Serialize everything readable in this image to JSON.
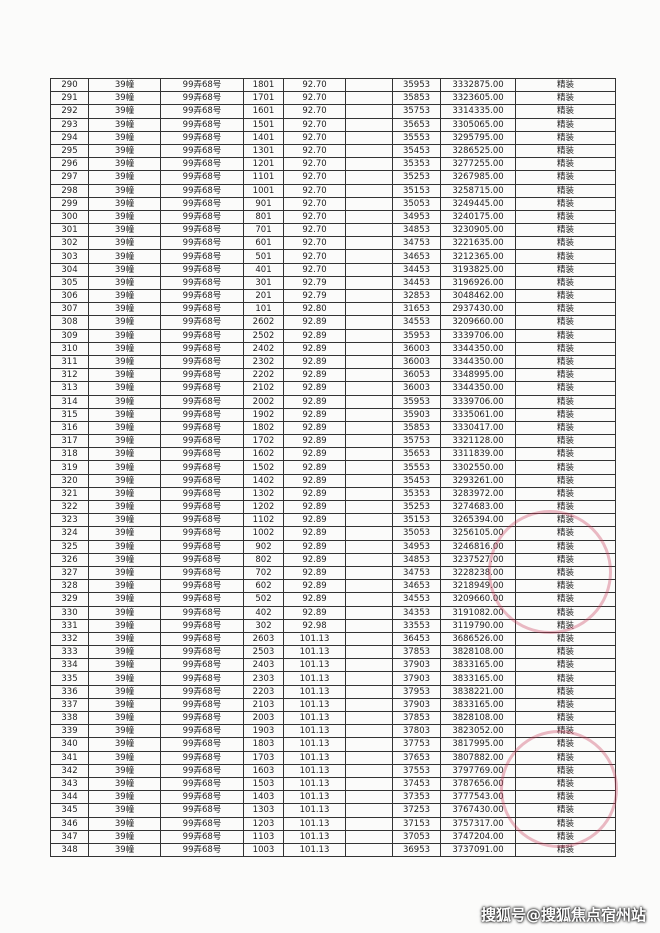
{
  "table": {
    "rows": [
      [
        "290",
        "39幢",
        "99弄68号",
        "1801",
        "92.70",
        "35953",
        "3332875.00",
        "精装"
      ],
      [
        "291",
        "39幢",
        "99弄68号",
        "1701",
        "92.70",
        "35853",
        "3323605.00",
        "精装"
      ],
      [
        "292",
        "39幢",
        "99弄68号",
        "1601",
        "92.70",
        "35753",
        "3314335.00",
        "精装"
      ],
      [
        "293",
        "39幢",
        "99弄68号",
        "1501",
        "92.70",
        "35653",
        "3305065.00",
        "精装"
      ],
      [
        "294",
        "39幢",
        "99弄68号",
        "1401",
        "92.70",
        "35553",
        "3295795.00",
        "精装"
      ],
      [
        "295",
        "39幢",
        "99弄68号",
        "1301",
        "92.70",
        "35453",
        "3286525.00",
        "精装"
      ],
      [
        "296",
        "39幢",
        "99弄68号",
        "1201",
        "92.70",
        "35353",
        "3277255.00",
        "精装"
      ],
      [
        "297",
        "39幢",
        "99弄68号",
        "1101",
        "92.70",
        "35253",
        "3267985.00",
        "精装"
      ],
      [
        "298",
        "39幢",
        "99弄68号",
        "1001",
        "92.70",
        "35153",
        "3258715.00",
        "精装"
      ],
      [
        "299",
        "39幢",
        "99弄68号",
        "901",
        "92.70",
        "35053",
        "3249445.00",
        "精装"
      ],
      [
        "300",
        "39幢",
        "99弄68号",
        "801",
        "92.70",
        "34953",
        "3240175.00",
        "精装"
      ],
      [
        "301",
        "39幢",
        "99弄68号",
        "701",
        "92.70",
        "34853",
        "3230905.00",
        "精装"
      ],
      [
        "302",
        "39幢",
        "99弄68号",
        "601",
        "92.70",
        "34753",
        "3221635.00",
        "精装"
      ],
      [
        "303",
        "39幢",
        "99弄68号",
        "501",
        "92.70",
        "34653",
        "3212365.00",
        "精装"
      ],
      [
        "304",
        "39幢",
        "99弄68号",
        "401",
        "92.70",
        "34453",
        "3193825.00",
        "精装"
      ],
      [
        "305",
        "39幢",
        "99弄68号",
        "301",
        "92.79",
        "34453",
        "3196926.00",
        "精装"
      ],
      [
        "306",
        "39幢",
        "99弄68号",
        "201",
        "92.79",
        "32853",
        "3048462.00",
        "精装"
      ],
      [
        "307",
        "39幢",
        "99弄68号",
        "101",
        "92.80",
        "31653",
        "2937430.00",
        "精装"
      ],
      [
        "308",
        "39幢",
        "99弄68号",
        "2602",
        "92.89",
        "34553",
        "3209660.00",
        "精装"
      ],
      [
        "309",
        "39幢",
        "99弄68号",
        "2502",
        "92.89",
        "35953",
        "3339706.00",
        "精装"
      ],
      [
        "310",
        "39幢",
        "99弄68号",
        "2402",
        "92.89",
        "36003",
        "3344350.00",
        "精装"
      ],
      [
        "311",
        "39幢",
        "99弄68号",
        "2302",
        "92.89",
        "36003",
        "3344350.00",
        "精装"
      ],
      [
        "312",
        "39幢",
        "99弄68号",
        "2202",
        "92.89",
        "36053",
        "3348995.00",
        "精装"
      ],
      [
        "313",
        "39幢",
        "99弄68号",
        "2102",
        "92.89",
        "36003",
        "3344350.00",
        "精装"
      ],
      [
        "314",
        "39幢",
        "99弄68号",
        "2002",
        "92.89",
        "35953",
        "3339706.00",
        "精装"
      ],
      [
        "315",
        "39幢",
        "99弄68号",
        "1902",
        "92.89",
        "35903",
        "3335061.00",
        "精装"
      ],
      [
        "316",
        "39幢",
        "99弄68号",
        "1802",
        "92.89",
        "35853",
        "3330417.00",
        "精装"
      ],
      [
        "317",
        "39幢",
        "99弄68号",
        "1702",
        "92.89",
        "35753",
        "3321128.00",
        "精装"
      ],
      [
        "318",
        "39幢",
        "99弄68号",
        "1602",
        "92.89",
        "35653",
        "3311839.00",
        "精装"
      ],
      [
        "319",
        "39幢",
        "99弄68号",
        "1502",
        "92.89",
        "35553",
        "3302550.00",
        "精装"
      ],
      [
        "320",
        "39幢",
        "99弄68号",
        "1402",
        "92.89",
        "35453",
        "3293261.00",
        "精装"
      ],
      [
        "321",
        "39幢",
        "99弄68号",
        "1302",
        "92.89",
        "35353",
        "3283972.00",
        "精装"
      ],
      [
        "322",
        "39幢",
        "99弄68号",
        "1202",
        "92.89",
        "35253",
        "3274683.00",
        "精装"
      ],
      [
        "323",
        "39幢",
        "99弄68号",
        "1102",
        "92.89",
        "35153",
        "3265394.00",
        "精装"
      ],
      [
        "324",
        "39幢",
        "99弄68号",
        "1002",
        "92.89",
        "35053",
        "3256105.00",
        "精装"
      ],
      [
        "325",
        "39幢",
        "99弄68号",
        "902",
        "92.89",
        "34953",
        "3246816.00",
        "精装"
      ],
      [
        "326",
        "39幢",
        "99弄68号",
        "802",
        "92.89",
        "34853",
        "3237527.00",
        "精装"
      ],
      [
        "327",
        "39幢",
        "99弄68号",
        "702",
        "92.89",
        "34753",
        "3228238.00",
        "精装"
      ],
      [
        "328",
        "39幢",
        "99弄68号",
        "602",
        "92.89",
        "34653",
        "3218949.00",
        "精装"
      ],
      [
        "329",
        "39幢",
        "99弄68号",
        "502",
        "92.89",
        "34553",
        "3209660.00",
        "精装"
      ],
      [
        "330",
        "39幢",
        "99弄68号",
        "402",
        "92.89",
        "34353",
        "3191082.00",
        "精装"
      ],
      [
        "331",
        "39幢",
        "99弄68号",
        "302",
        "92.98",
        "33553",
        "3119790.00",
        "精装"
      ],
      [
        "332",
        "39幢",
        "99弄68号",
        "2603",
        "101.13",
        "36453",
        "3686526.00",
        "精装"
      ],
      [
        "333",
        "39幢",
        "99弄68号",
        "2503",
        "101.13",
        "37853",
        "3828108.00",
        "精装"
      ],
      [
        "334",
        "39幢",
        "99弄68号",
        "2403",
        "101.13",
        "37903",
        "3833165.00",
        "精装"
      ],
      [
        "335",
        "39幢",
        "99弄68号",
        "2303",
        "101.13",
        "37903",
        "3833165.00",
        "精装"
      ],
      [
        "336",
        "39幢",
        "99弄68号",
        "2203",
        "101.13",
        "37953",
        "3838221.00",
        "精装"
      ],
      [
        "337",
        "39幢",
        "99弄68号",
        "2103",
        "101.13",
        "37903",
        "3833165.00",
        "精装"
      ],
      [
        "338",
        "39幢",
        "99弄68号",
        "2003",
        "101.13",
        "37853",
        "3828108.00",
        "精装"
      ],
      [
        "339",
        "39幢",
        "99弄68号",
        "1903",
        "101.13",
        "37803",
        "3823052.00",
        "精装"
      ],
      [
        "340",
        "39幢",
        "99弄68号",
        "1803",
        "101.13",
        "37753",
        "3817995.00",
        "精装"
      ],
      [
        "341",
        "39幢",
        "99弄68号",
        "1703",
        "101.13",
        "37653",
        "3807882.00",
        "精装"
      ],
      [
        "342",
        "39幢",
        "99弄68号",
        "1603",
        "101.13",
        "37553",
        "3797769.00",
        "精装"
      ],
      [
        "343",
        "39幢",
        "99弄68号",
        "1503",
        "101.13",
        "37453",
        "3787656.00",
        "精装"
      ],
      [
        "344",
        "39幢",
        "99弄68号",
        "1403",
        "101.13",
        "37353",
        "3777543.00",
        "精装"
      ],
      [
        "345",
        "39幢",
        "99弄68号",
        "1303",
        "101.13",
        "37253",
        "3767430.00",
        "精装"
      ],
      [
        "346",
        "39幢",
        "99弄68号",
        "1203",
        "101.13",
        "37153",
        "3757317.00",
        "精装"
      ],
      [
        "347",
        "39幢",
        "99弄68号",
        "1103",
        "101.13",
        "37053",
        "3747204.00",
        "精装"
      ],
      [
        "348",
        "39幢",
        "99弄68号",
        "1003",
        "101.13",
        "36953",
        "3737091.00",
        "精装"
      ]
    ]
  },
  "watermark": "搜狐号@搜狐焦点宿州站"
}
